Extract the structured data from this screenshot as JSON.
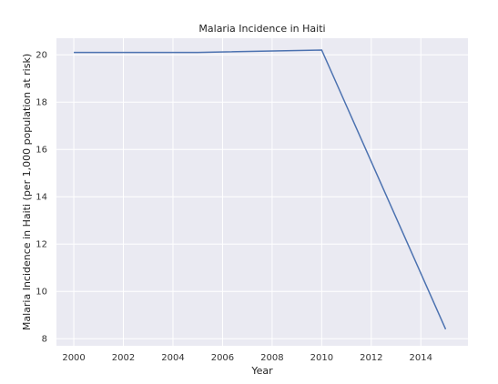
{
  "chart_data": {
    "type": "line",
    "title": "Malaria Incidence in Haiti",
    "xlabel": "Year",
    "ylabel": "Malaria Incidence in Haiti (per 1,000 population at risk)",
    "xlim": [
      1999.3,
      2015.9
    ],
    "ylim": [
      7.7,
      20.7
    ],
    "xticks": [
      2000,
      2002,
      2004,
      2006,
      2008,
      2010,
      2012,
      2014
    ],
    "yticks": [
      8,
      10,
      12,
      14,
      16,
      18,
      20
    ],
    "grid": true,
    "series": [
      {
        "x": [
          2000,
          2005,
          2010,
          2015
        ],
        "y": [
          20.1,
          20.1,
          20.2,
          8.4
        ]
      }
    ],
    "colors": {
      "line": "#4c72b0",
      "plot_bg": "#eaeaf2",
      "grid": "#ffffff"
    }
  }
}
